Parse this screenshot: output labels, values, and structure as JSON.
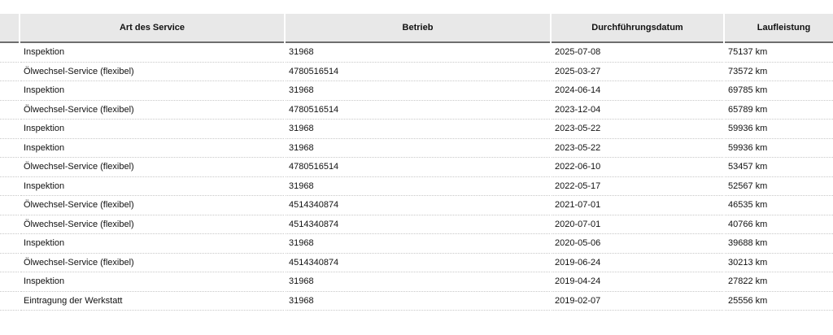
{
  "table": {
    "headers": [
      "",
      "Art des Service",
      "Betrieb",
      "Durchführungsdatum",
      "Laufleistung"
    ],
    "rows": [
      [
        "Inspektion",
        "31968",
        "2025-07-08",
        "75137 km"
      ],
      [
        "Ölwechsel-Service (flexibel)",
        "4780516514",
        "2025-03-27",
        "73572 km"
      ],
      [
        "Inspektion",
        "31968",
        "2024-06-14",
        "69785 km"
      ],
      [
        "Ölwechsel-Service (flexibel)",
        "4780516514",
        "2023-12-04",
        "65789 km"
      ],
      [
        "Inspektion",
        "31968",
        "2023-05-22",
        "59936 km"
      ],
      [
        "Inspektion",
        "31968",
        "2023-05-22",
        "59936 km"
      ],
      [
        "Ölwechsel-Service (flexibel)",
        "4780516514",
        "2022-06-10",
        "53457 km"
      ],
      [
        "Inspektion",
        "31968",
        "2022-05-17",
        "52567 km"
      ],
      [
        "Ölwechsel-Service (flexibel)",
        "4514340874",
        "2021-07-01",
        "46535 km"
      ],
      [
        "Ölwechsel-Service (flexibel)",
        "4514340874",
        "2020-07-01",
        "40766 km"
      ],
      [
        "Inspektion",
        "31968",
        "2020-05-06",
        "39688 km"
      ],
      [
        "Ölwechsel-Service (flexibel)",
        "4514340874",
        "2019-06-24",
        "30213 km"
      ],
      [
        "Inspektion",
        "31968",
        "2019-04-24",
        "27822 km"
      ],
      [
        "Eintragung der Werkstatt",
        "31968",
        "2019-02-07",
        "25556 km"
      ]
    ]
  }
}
